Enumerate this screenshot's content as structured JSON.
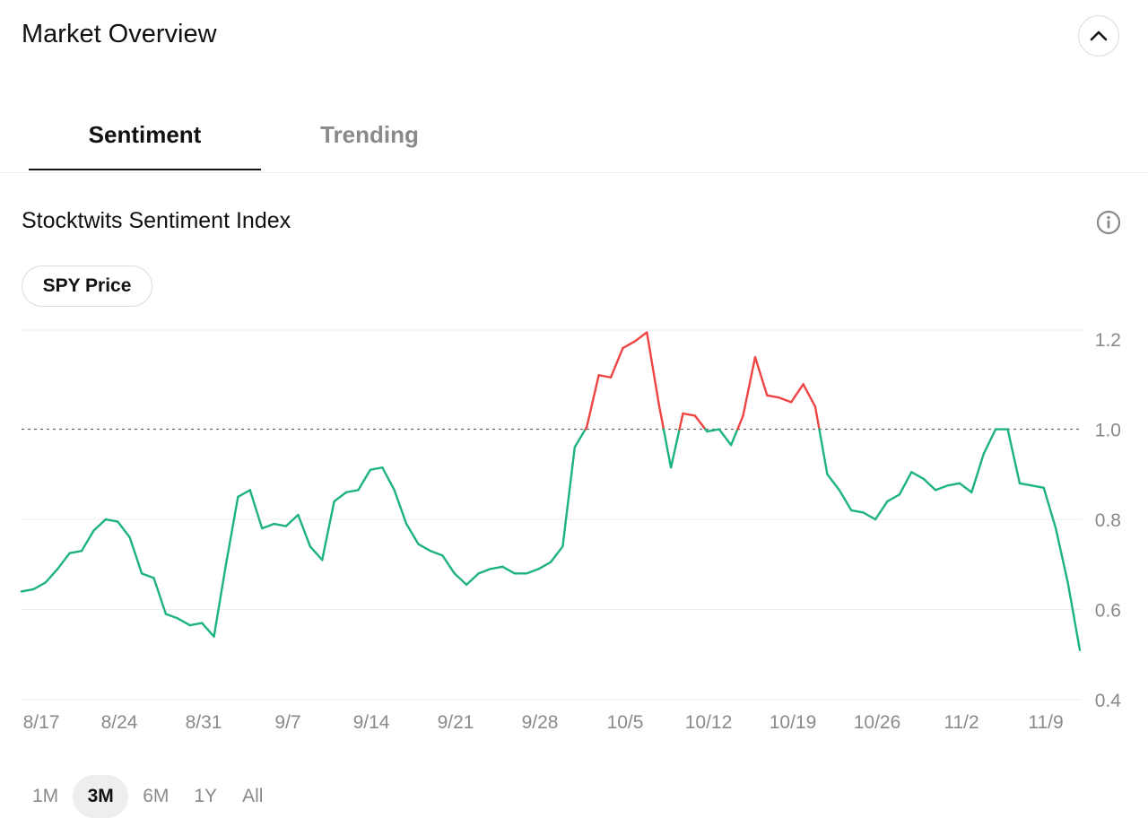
{
  "header": {
    "title": "Market Overview",
    "collapse_icon": "chevron-up-icon"
  },
  "tabs": [
    {
      "label": "Sentiment",
      "active": true
    },
    {
      "label": "Trending",
      "active": false
    }
  ],
  "section": {
    "title": "Stocktwits Sentiment Index",
    "info_icon": "info-icon"
  },
  "overlay_toggle": {
    "label": "SPY Price"
  },
  "ranges": [
    {
      "label": "1M",
      "active": false
    },
    {
      "label": "3M",
      "active": true
    },
    {
      "label": "6M",
      "active": false
    },
    {
      "label": "1Y",
      "active": false
    },
    {
      "label": "All",
      "active": false
    }
  ],
  "colors": {
    "above_threshold": "#ef4444",
    "below_threshold": "#1db37f",
    "reference_line": "#666666"
  },
  "chart_data": {
    "type": "line",
    "title": "Stocktwits Sentiment Index",
    "xlabel": "",
    "ylabel": "",
    "x_start": "8/16",
    "x_ticks": [
      "8/17",
      "8/24",
      "8/31",
      "9/7",
      "9/14",
      "9/21",
      "9/28",
      "10/5",
      "10/12",
      "10/19",
      "10/26",
      "11/2",
      "11/9"
    ],
    "y_ticks": [
      0.4,
      0.6,
      0.8,
      1.0,
      1.2
    ],
    "ylim": [
      0.4,
      1.22
    ],
    "reference_line": 1.0,
    "grid": "horizontal",
    "y_axis_position": "right",
    "values": [
      0.64,
      0.645,
      0.66,
      0.69,
      0.725,
      0.73,
      0.775,
      0.8,
      0.795,
      0.76,
      0.68,
      0.67,
      0.59,
      0.58,
      0.565,
      0.57,
      0.54,
      0.7,
      0.85,
      0.865,
      0.78,
      0.79,
      0.785,
      0.81,
      0.74,
      0.71,
      0.84,
      0.86,
      0.865,
      0.91,
      0.915,
      0.865,
      0.79,
      0.745,
      0.73,
      0.72,
      0.68,
      0.655,
      0.68,
      0.69,
      0.695,
      0.68,
      0.68,
      0.69,
      0.705,
      0.74,
      0.96,
      1.005,
      1.12,
      1.115,
      1.18,
      1.195,
      1.215,
      1.055,
      0.915,
      1.035,
      1.03,
      0.995,
      1.0,
      0.965,
      1.03,
      1.16,
      1.075,
      1.07,
      1.06,
      1.1,
      1.05,
      0.9,
      0.865,
      0.82,
      0.815,
      0.8,
      0.84,
      0.855,
      0.905,
      0.89,
      0.865,
      0.875,
      0.88,
      0.86,
      0.945,
      1.0,
      1.0,
      0.88,
      0.875,
      0.87,
      0.78,
      0.66,
      0.51
    ]
  }
}
